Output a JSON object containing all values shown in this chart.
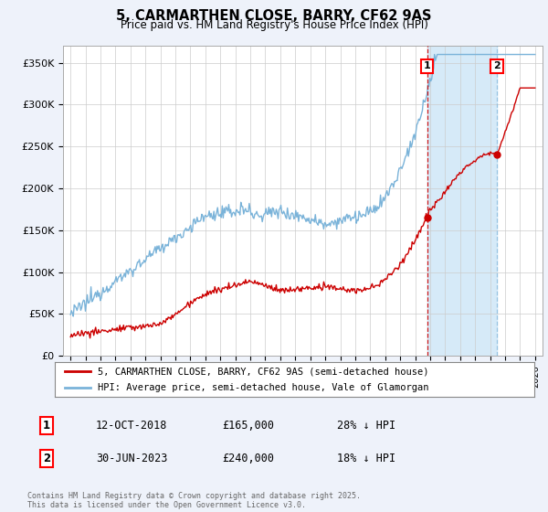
{
  "title": "5, CARMARTHEN CLOSE, BARRY, CF62 9AS",
  "subtitle": "Price paid vs. HM Land Registry's House Price Index (HPI)",
  "ylim": [
    0,
    370000
  ],
  "yticks": [
    0,
    50000,
    100000,
    150000,
    200000,
    250000,
    300000,
    350000
  ],
  "ytick_labels": [
    "£0",
    "£50K",
    "£100K",
    "£150K",
    "£200K",
    "£250K",
    "£300K",
    "£350K"
  ],
  "hpi_color": "#7ab3d9",
  "price_color": "#cc0000",
  "shade_color": "#d6eaf8",
  "marker1_color": "#cc0000",
  "marker2_color": "#7ab3d9",
  "marker1_year": 2018.79,
  "marker2_year": 2023.46,
  "marker1_price_val": 165000,
  "marker2_price_val": 240000,
  "marker1_date_label": "12-OCT-2018",
  "marker1_price": 165000,
  "marker1_hpi_pct": "28% ↓ HPI",
  "marker2_date_label": "30-JUN-2023",
  "marker2_price": 240000,
  "marker2_hpi_pct": "18% ↓ HPI",
  "legend_label_price": "5, CARMARTHEN CLOSE, BARRY, CF62 9AS (semi-detached house)",
  "legend_label_hpi": "HPI: Average price, semi-detached house, Vale of Glamorgan",
  "footnote": "Contains HM Land Registry data © Crown copyright and database right 2025.\nThis data is licensed under the Open Government Licence v3.0.",
  "background_color": "#eef2fa",
  "plot_bg_color": "#ffffff",
  "grid_color": "#cccccc",
  "xmin": 1994.5,
  "xmax": 2026.5
}
